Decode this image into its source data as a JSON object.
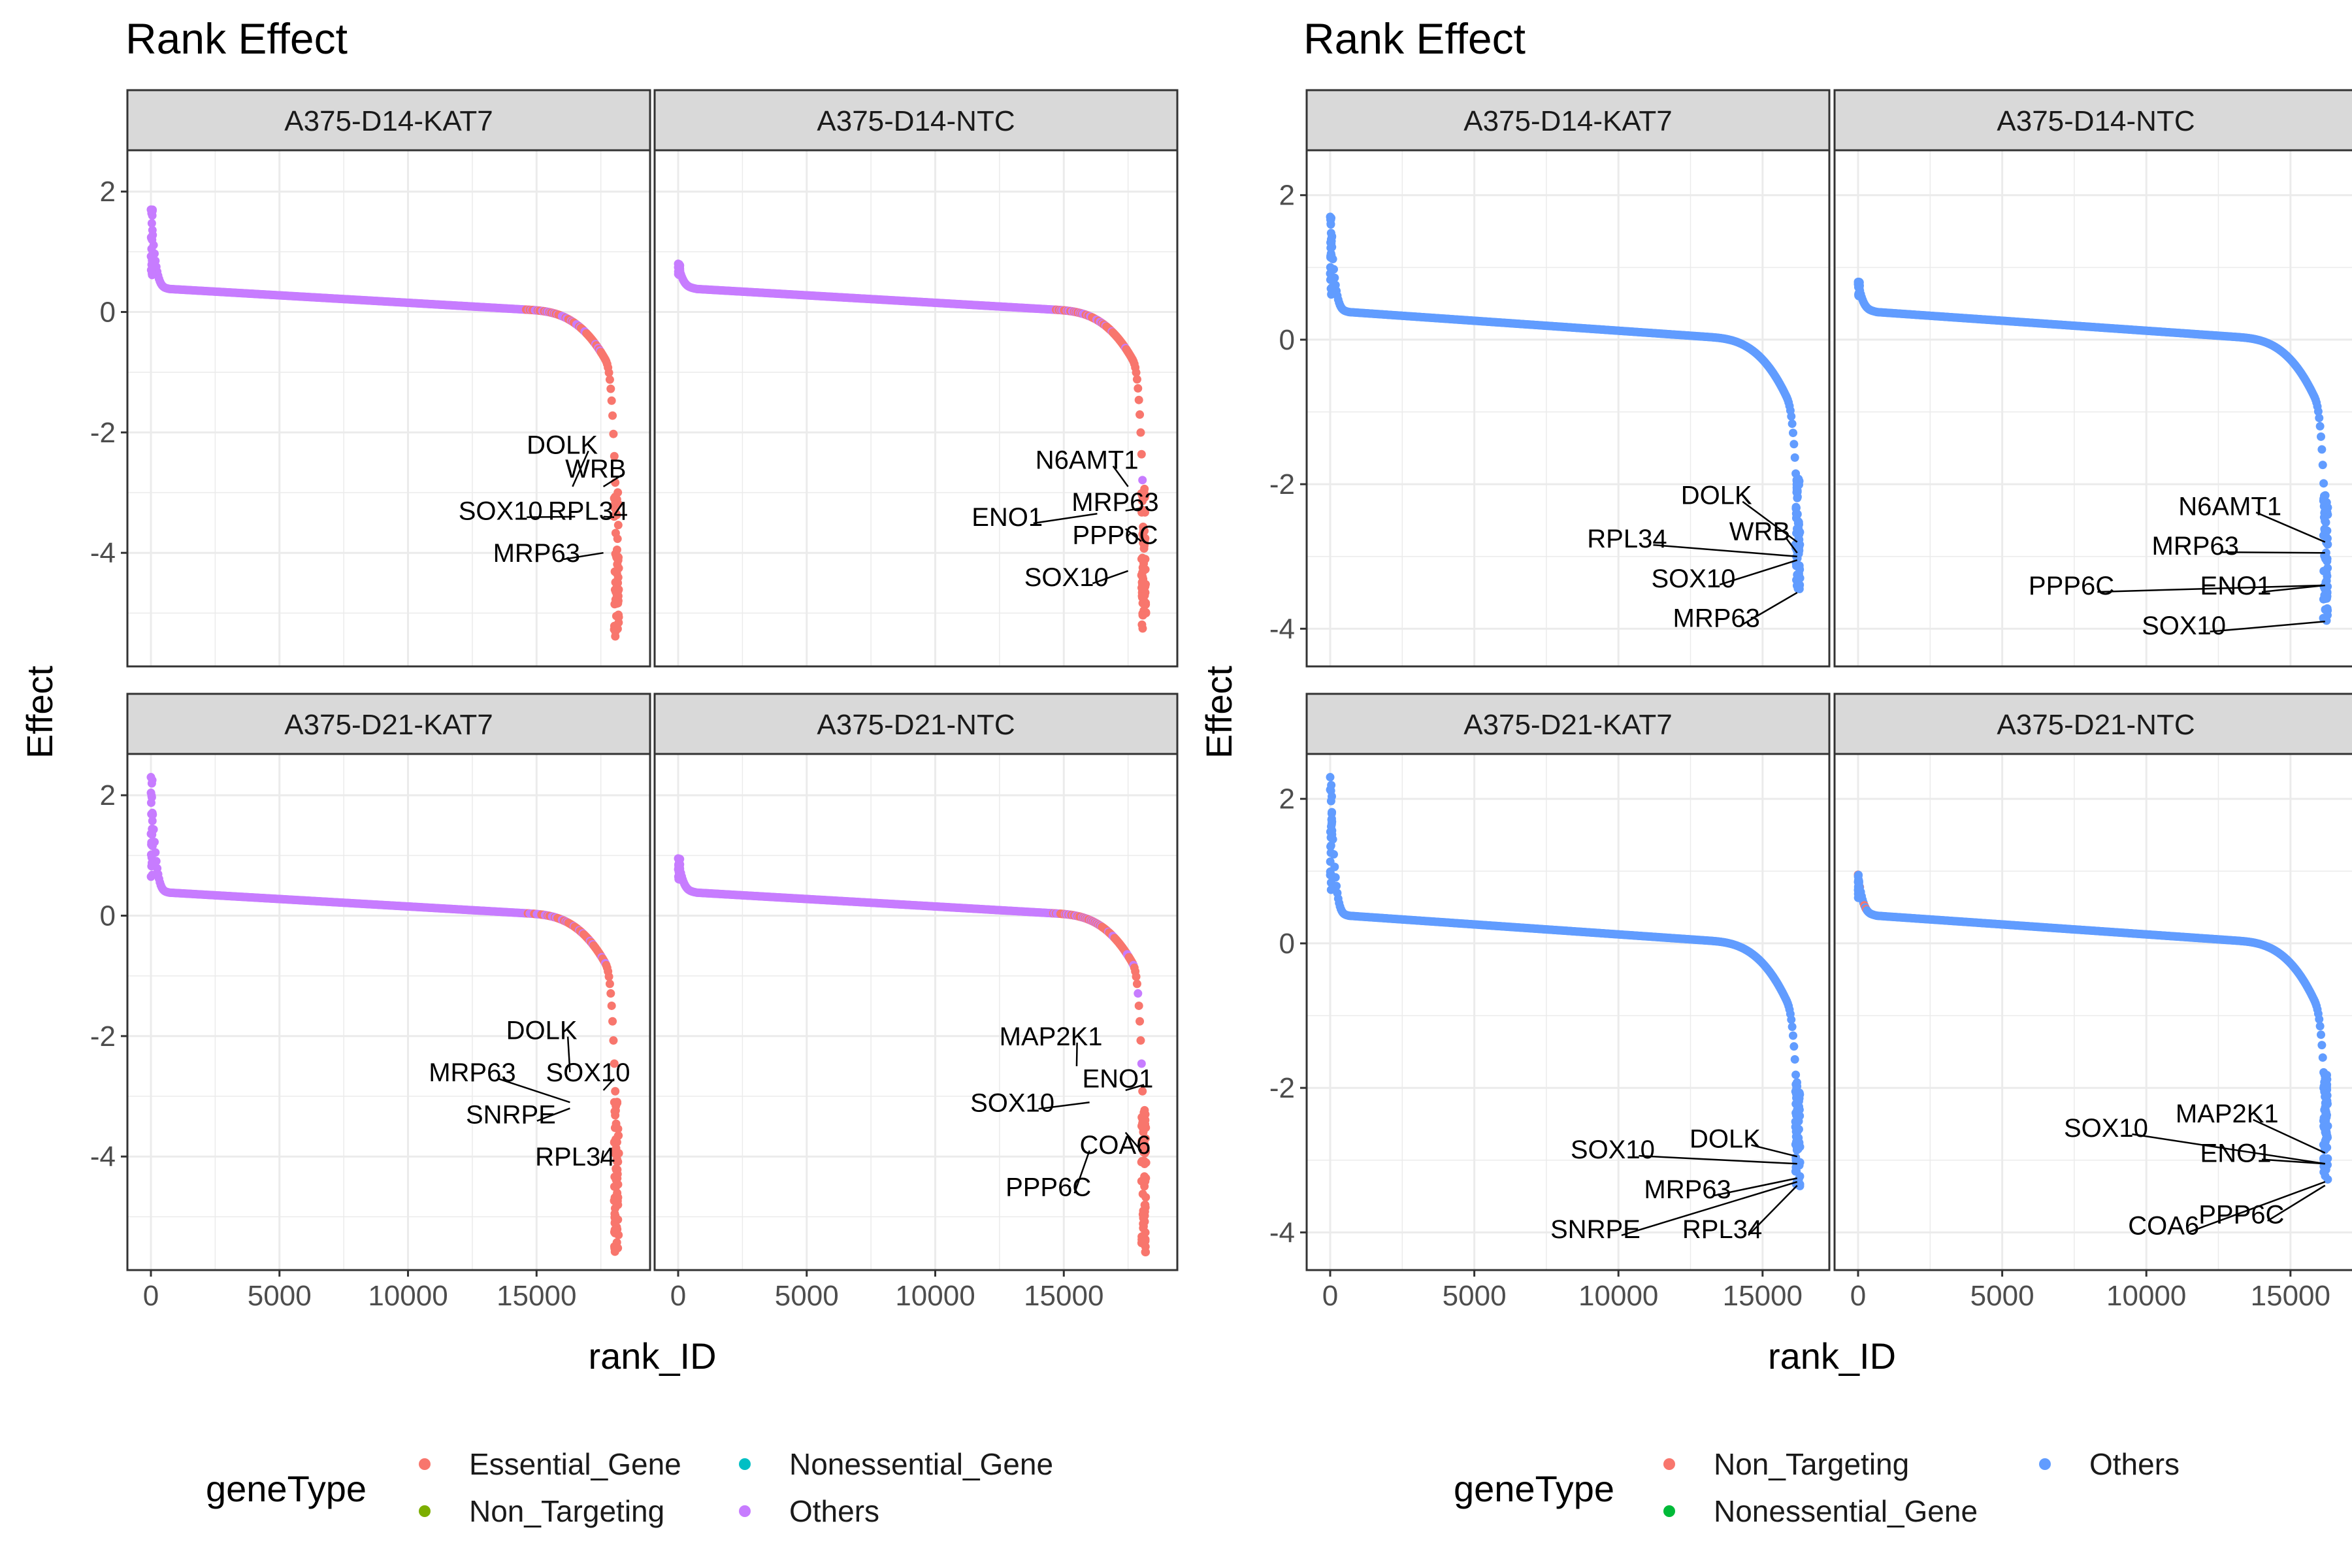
{
  "chart_data": [
    {
      "type": "scatter",
      "title": "Rank Effect",
      "xlabel": "rank_ID",
      "ylabel": "Effect",
      "xlim": [
        0,
        18500
      ],
      "ylim": [
        -5.5,
        2.3
      ],
      "x_ticks": [
        0,
        5000,
        10000,
        15000
      ],
      "x_tick_labels": [
        "0",
        "5000",
        "10000",
        "15000"
      ],
      "y_ticks": [
        2,
        0,
        -2,
        -4
      ],
      "y_tick_labels": [
        "2",
        "0",
        "-2",
        "-4"
      ],
      "grid": true,
      "legend": {
        "title": "geneType",
        "placement": "bottom",
        "entries": [
          {
            "name": "Essential_Gene",
            "color": "#F8766D"
          },
          {
            "name": "Nonessential_Gene",
            "color": "#00BFC4"
          },
          {
            "name": "Non_Targeting",
            "color": "#7CAE00"
          },
          {
            "name": "Others",
            "color": "#C77CFF"
          }
        ]
      },
      "point_color": "#C77CFF",
      "tail_color": "#F8766D",
      "panels": [
        {
          "name": "A375-D14-KAT7",
          "n": 18200,
          "max_effect": 1.7,
          "min_effect": -5.4,
          "labels": [
            {
              "text": "DOLK",
              "x": 16000,
              "y": -2.2,
              "px": 16400,
              "py": -2.9
            },
            {
              "text": "WRB",
              "x": 17300,
              "y": -2.6,
              "px": 17600,
              "py": -2.9
            },
            {
              "text": "SOX10",
              "x": 13600,
              "y": -3.3,
              "px": 16500,
              "py": -3.4
            },
            {
              "text": "RPL34",
              "x": 17000,
              "y": -3.3,
              "px": 17600,
              "py": -3.4
            },
            {
              "text": "MRP63",
              "x": 15000,
              "y": -4.0,
              "px": 17600,
              "py": -4.0
            }
          ]
        },
        {
          "name": "A375-D14-NTC",
          "n": 18200,
          "max_effect": 0.8,
          "min_effect": -5.3,
          "labels": [
            {
              "text": "N6AMT1",
              "x": 15900,
              "y": -2.45,
              "px": 17500,
              "py": -2.9
            },
            {
              "text": "ENO1",
              "x": 12800,
              "y": -3.4,
              "px": 16300,
              "py": -3.35
            },
            {
              "text": "MRP63",
              "x": 17000,
              "y": -3.15,
              "px": 17400,
              "py": -3.3
            },
            {
              "text": "PPP6C",
              "x": 17000,
              "y": -3.7,
              "px": 17400,
              "py": -3.6
            },
            {
              "text": "SOX10",
              "x": 15100,
              "y": -4.4,
              "px": 17500,
              "py": -4.3
            }
          ]
        },
        {
          "name": "A375-D21-KAT7",
          "n": 18200,
          "max_effect": 2.3,
          "min_effect": -5.6,
          "labels": [
            {
              "text": "DOLK",
              "x": 15200,
              "y": -1.9,
              "px": 16300,
              "py": -2.6
            },
            {
              "text": "MRP63",
              "x": 12500,
              "y": -2.6,
              "px": 16300,
              "py": -3.1
            },
            {
              "text": "SOX10",
              "x": 17000,
              "y": -2.6,
              "px": 17600,
              "py": -2.9
            },
            {
              "text": "SNRPE",
              "x": 14000,
              "y": -3.3,
              "px": 16300,
              "py": -3.2
            },
            {
              "text": "RPL34",
              "x": 16500,
              "y": -4.0,
              "px": 17600,
              "py": -3.9
            }
          ]
        },
        {
          "name": "A375-D21-NTC",
          "n": 18200,
          "max_effect": 0.95,
          "min_effect": -5.6,
          "labels": [
            {
              "text": "MAP2K1",
              "x": 14500,
              "y": -2.0,
              "px": 15500,
              "py": -2.5
            },
            {
              "text": "ENO1",
              "x": 17100,
              "y": -2.7,
              "px": 17400,
              "py": -2.9
            },
            {
              "text": "SOX10",
              "x": 13000,
              "y": -3.1,
              "px": 16000,
              "py": -3.1
            },
            {
              "text": "COA6",
              "x": 17000,
              "y": -3.8,
              "px": 17400,
              "py": -3.6
            },
            {
              "text": "PPP6C",
              "x": 14400,
              "y": -4.5,
              "px": 16000,
              "py": -3.9
            }
          ]
        }
      ]
    },
    {
      "type": "scatter",
      "title": "Rank Effect",
      "xlabel": "rank_ID",
      "ylabel": "Effect",
      "xlim": [
        0,
        16500
      ],
      "ylim": [
        -4.2,
        2.3
      ],
      "x_ticks": [
        0,
        5000,
        10000,
        15000
      ],
      "x_tick_labels": [
        "0",
        "5000",
        "10000",
        "15000"
      ],
      "y_ticks": [
        2,
        0,
        -2,
        -4
      ],
      "y_tick_labels": [
        "2",
        "0",
        "-2",
        "-4"
      ],
      "grid": true,
      "legend": {
        "title": "geneType",
        "placement": "bottom",
        "entries": [
          {
            "name": "Non_Targeting",
            "color": "#F8766D"
          },
          {
            "name": "Others",
            "color": "#619CFF"
          },
          {
            "name": "Nonessential_Gene",
            "color": "#00BA38"
          }
        ]
      },
      "point_color": "#619CFF",
      "tail_color": "#619CFF",
      "panels": [
        {
          "name": "A375-D14-KAT7",
          "n": 16300,
          "max_effect": 1.7,
          "min_effect": -3.5,
          "labels": [
            {
              "text": "DOLK",
              "x": 13400,
              "y": -2.15,
              "px": 16200,
              "py": -2.8
            },
            {
              "text": "WRB",
              "x": 14900,
              "y": -2.65,
              "px": 16200,
              "py": -2.95
            },
            {
              "text": "RPL34",
              "x": 10300,
              "y": -2.75,
              "px": 16200,
              "py": -3.0
            },
            {
              "text": "SOX10",
              "x": 12600,
              "y": -3.3,
              "px": 16200,
              "py": -3.05
            },
            {
              "text": "MRP63",
              "x": 13400,
              "y": -3.85,
              "px": 16200,
              "py": -3.5
            }
          ]
        },
        {
          "name": "A375-D14-NTC",
          "n": 16300,
          "max_effect": 0.8,
          "min_effect": -3.9,
          "labels": [
            {
              "text": "N6AMT1",
              "x": 12900,
              "y": -2.3,
              "px": 16200,
              "py": -2.8
            },
            {
              "text": "MRP63",
              "x": 11700,
              "y": -2.85,
              "px": 16200,
              "py": -2.95
            },
            {
              "text": "PPP6C",
              "x": 7400,
              "y": -3.4,
              "px": 16100,
              "py": -3.4
            },
            {
              "text": "ENO1",
              "x": 13100,
              "y": -3.4,
              "px": 16200,
              "py": -3.4
            },
            {
              "text": "SOX10",
              "x": 11300,
              "y": -3.95,
              "px": 16200,
              "py": -3.9
            }
          ]
        },
        {
          "name": "A375-D21-KAT7",
          "n": 16300,
          "max_effect": 2.3,
          "min_effect": -3.4,
          "labels": [
            {
              "text": "DOLK",
              "x": 13700,
              "y": -2.7,
              "px": 16200,
              "py": -2.95
            },
            {
              "text": "SOX10",
              "x": 9800,
              "y": -2.85,
              "px": 16200,
              "py": -3.05
            },
            {
              "text": "MRP63",
              "x": 12400,
              "y": -3.4,
              "px": 16200,
              "py": -3.25
            },
            {
              "text": "SNRPE",
              "x": 9200,
              "y": -3.95,
              "px": 16200,
              "py": -3.3
            },
            {
              "text": "RPL34",
              "x": 13600,
              "y": -3.95,
              "px": 16200,
              "py": -3.35
            }
          ]
        },
        {
          "name": "A375-D21-NTC",
          "n": 16300,
          "max_effect": 0.95,
          "min_effect": -3.3,
          "labels": [
            {
              "text": "MAP2K1",
              "x": 12800,
              "y": -2.35,
              "px": 16200,
              "py": -2.9
            },
            {
              "text": "SOX10",
              "x": 8600,
              "y": -2.55,
              "px": 16200,
              "py": -3.05
            },
            {
              "text": "ENO1",
              "x": 13100,
              "y": -2.9,
              "px": 16200,
              "py": -3.05
            },
            {
              "text": "COA6",
              "x": 10600,
              "y": -3.9,
              "px": 16200,
              "py": -3.3
            },
            {
              "text": "PPP6C",
              "x": 13300,
              "y": -3.75,
              "px": 16200,
              "py": -3.35
            }
          ]
        }
      ]
    }
  ]
}
